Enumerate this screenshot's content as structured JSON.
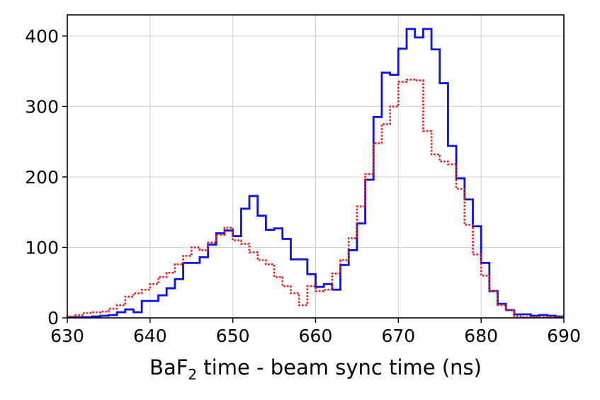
{
  "chart_data": {
    "type": "line",
    "style": "step-histogram",
    "xlabel_main": "BaF",
    "xlabel_sub": "2",
    "xlabel_rest": " time - beam sync time (ns)",
    "ylabel": "",
    "xlim": [
      630,
      690
    ],
    "ylim": [
      0,
      430
    ],
    "xticks": [
      "630",
      "640",
      "650",
      "660",
      "670",
      "680",
      "690"
    ],
    "yticks": [
      "0",
      "100",
      "200",
      "300",
      "400"
    ],
    "grid": true,
    "bin_width": 1,
    "x_start": 630,
    "series": [
      {
        "color": "#1010e0",
        "linestyle": "solid",
        "values": [
          1,
          1,
          1,
          2,
          3,
          4,
          8,
          12,
          8,
          24,
          24,
          32,
          42,
          55,
          78,
          78,
          86,
          104,
          120,
          124,
          116,
          155,
          173,
          145,
          125,
          127,
          112,
          83,
          83,
          62,
          44,
          48,
          40,
          75,
          96,
          134,
          196,
          285,
          348,
          345,
          382,
          410,
          398,
          410,
          381,
          333,
          244,
          198,
          168,
          130,
          78,
          38,
          20,
          11,
          5,
          5,
          3,
          4,
          3,
          2
        ]
      },
      {
        "color": "#ee1c1c",
        "linestyle": "dotted",
        "values": [
          2,
          4,
          7,
          8,
          9,
          13,
          18,
          30,
          35,
          40,
          48,
          58,
          64,
          76,
          88,
          100,
          96,
          107,
          118,
          128,
          110,
          105,
          93,
          82,
          76,
          58,
          45,
          35,
          18,
          45,
          38,
          40,
          63,
          82,
          113,
          158,
          204,
          248,
          275,
          300,
          335,
          338,
          337,
          265,
          232,
          222,
          218,
          183,
          132,
          90,
          60,
          38,
          18,
          11,
          2,
          1,
          1,
          1,
          1,
          1
        ]
      }
    ]
  }
}
